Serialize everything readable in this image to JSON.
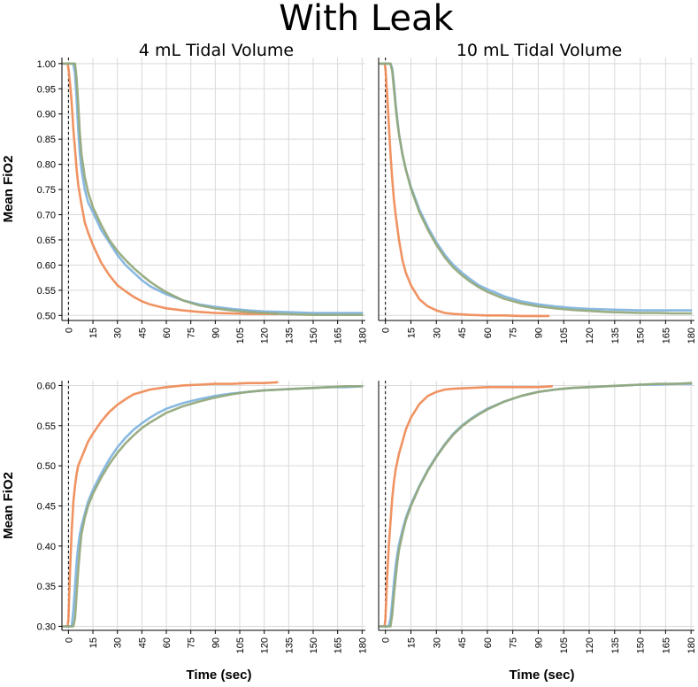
{
  "title": "With Leak",
  "colors": {
    "orange": "#ef8a55",
    "blue": "#7fb3de",
    "green": "#93a77a"
  },
  "chart_data": [
    {
      "type": "line",
      "panel": "top-left",
      "title": "4 mL Tidal Volume",
      "xlabel": "",
      "ylabel": "Mean FiO2",
      "xlim": [
        -4,
        182
      ],
      "ylim": [
        0.49,
        1.012
      ],
      "xticks": [
        0,
        15,
        30,
        45,
        60,
        75,
        90,
        105,
        120,
        135,
        150,
        165,
        180
      ],
      "yticks": [
        "0.50",
        "0.55",
        "0.60",
        "0.65",
        "0.70",
        "0.75",
        "0.80",
        "0.85",
        "0.90",
        "0.95",
        "1.00"
      ],
      "grid": true,
      "series": [
        {
          "color": "orange",
          "x": [
            -3,
            -0.5,
            0,
            1,
            2,
            3,
            4,
            5,
            6,
            8,
            10,
            12,
            15,
            20,
            25,
            30,
            35,
            40,
            45,
            50,
            55,
            60,
            70,
            80,
            90,
            100,
            110,
            120,
            128
          ],
          "y": [
            1.0,
            1.0,
            0.99,
            0.96,
            0.92,
            0.87,
            0.83,
            0.79,
            0.76,
            0.72,
            0.685,
            0.665,
            0.64,
            0.605,
            0.58,
            0.56,
            0.548,
            0.537,
            0.528,
            0.522,
            0.518,
            0.514,
            0.51,
            0.507,
            0.505,
            0.504,
            0.503,
            0.503,
            0.503
          ]
        },
        {
          "color": "blue",
          "x": [
            -3,
            3,
            4,
            5,
            6,
            7,
            8,
            10,
            12,
            15,
            20,
            25,
            30,
            35,
            40,
            45,
            50,
            55,
            60,
            70,
            80,
            90,
            100,
            110,
            120,
            130,
            140,
            150,
            160,
            170,
            180
          ],
          "y": [
            1.0,
            1.0,
            0.98,
            0.93,
            0.87,
            0.82,
            0.79,
            0.75,
            0.725,
            0.705,
            0.67,
            0.645,
            0.62,
            0.6,
            0.585,
            0.57,
            0.558,
            0.55,
            0.542,
            0.53,
            0.522,
            0.517,
            0.513,
            0.51,
            0.508,
            0.507,
            0.506,
            0.505,
            0.505,
            0.505,
            0.505
          ]
        },
        {
          "color": "green",
          "x": [
            -3,
            4,
            5,
            6,
            7,
            8,
            10,
            12,
            15,
            20,
            25,
            30,
            35,
            40,
            45,
            50,
            55,
            60,
            70,
            80,
            90,
            100,
            110,
            120,
            130,
            140,
            150,
            160,
            170,
            180
          ],
          "y": [
            1.0,
            1.0,
            0.97,
            0.92,
            0.86,
            0.82,
            0.775,
            0.745,
            0.715,
            0.68,
            0.65,
            0.628,
            0.61,
            0.594,
            0.58,
            0.567,
            0.556,
            0.546,
            0.53,
            0.52,
            0.514,
            0.51,
            0.507,
            0.505,
            0.503,
            0.502,
            0.501,
            0.501,
            0.501,
            0.501
          ]
        }
      ]
    },
    {
      "type": "line",
      "panel": "top-right",
      "title": "10 mL Tidal Volume",
      "xlabel": "",
      "ylabel": "",
      "xlim": [
        -4,
        182
      ],
      "ylim": [
        0.49,
        1.012
      ],
      "xticks": [
        0,
        15,
        30,
        45,
        60,
        75,
        90,
        105,
        120,
        135,
        150,
        165,
        180
      ],
      "grid": true,
      "series": [
        {
          "color": "orange",
          "x": [
            -3,
            -0.5,
            0,
            1,
            2,
            3,
            4,
            5,
            6,
            8,
            10,
            12,
            15,
            20,
            25,
            30,
            35,
            40,
            50,
            60,
            70,
            80,
            90,
            96
          ],
          "y": [
            1.0,
            1.0,
            0.99,
            0.94,
            0.88,
            0.82,
            0.77,
            0.73,
            0.7,
            0.65,
            0.61,
            0.585,
            0.56,
            0.532,
            0.518,
            0.51,
            0.505,
            0.503,
            0.501,
            0.5,
            0.5,
            0.499,
            0.499,
            0.499
          ]
        },
        {
          "color": "blue",
          "x": [
            -3,
            3,
            4,
            5,
            6,
            7,
            8,
            10,
            12,
            15,
            20,
            25,
            30,
            35,
            40,
            45,
            50,
            55,
            60,
            70,
            80,
            90,
            100,
            110,
            120,
            130,
            140,
            150,
            160,
            170,
            180
          ],
          "y": [
            1.0,
            1.0,
            0.99,
            0.96,
            0.92,
            0.89,
            0.86,
            0.82,
            0.79,
            0.755,
            0.71,
            0.675,
            0.645,
            0.62,
            0.6,
            0.585,
            0.572,
            0.56,
            0.552,
            0.538,
            0.528,
            0.522,
            0.518,
            0.515,
            0.513,
            0.512,
            0.511,
            0.51,
            0.51,
            0.51,
            0.51
          ]
        },
        {
          "color": "green",
          "x": [
            -3,
            3,
            4,
            5,
            6,
            7,
            8,
            10,
            12,
            15,
            20,
            25,
            30,
            35,
            40,
            45,
            50,
            55,
            60,
            70,
            80,
            90,
            100,
            110,
            120,
            130,
            140,
            150,
            160,
            170,
            180
          ],
          "y": [
            1.0,
            1.0,
            0.985,
            0.95,
            0.915,
            0.885,
            0.86,
            0.82,
            0.79,
            0.752,
            0.705,
            0.67,
            0.64,
            0.615,
            0.595,
            0.58,
            0.567,
            0.556,
            0.547,
            0.533,
            0.524,
            0.518,
            0.514,
            0.511,
            0.509,
            0.507,
            0.506,
            0.505,
            0.505,
            0.504,
            0.504
          ]
        }
      ]
    },
    {
      "type": "line",
      "panel": "bottom-left",
      "title": "",
      "xlabel": "Time (sec)",
      "ylabel": "Mean FiO2",
      "xlim": [
        -4,
        182
      ],
      "ylim": [
        0.295,
        0.606
      ],
      "xticks": [
        0,
        15,
        30,
        45,
        60,
        75,
        90,
        105,
        120,
        135,
        150,
        165,
        180
      ],
      "yticks": [
        "0.30",
        "0.35",
        "0.40",
        "0.45",
        "0.50",
        "0.55",
        "0.60"
      ],
      "grid": true,
      "series": [
        {
          "color": "orange",
          "x": [
            -3,
            -0.5,
            0,
            1,
            2,
            3,
            4,
            5,
            6,
            8,
            10,
            12,
            15,
            20,
            25,
            30,
            35,
            40,
            45,
            50,
            60,
            70,
            80,
            90,
            100,
            110,
            120,
            128
          ],
          "y": [
            0.3,
            0.3,
            0.31,
            0.37,
            0.42,
            0.455,
            0.475,
            0.49,
            0.5,
            0.51,
            0.52,
            0.53,
            0.54,
            0.555,
            0.567,
            0.576,
            0.583,
            0.589,
            0.592,
            0.595,
            0.598,
            0.6,
            0.601,
            0.602,
            0.602,
            0.603,
            0.603,
            0.604
          ]
        },
        {
          "color": "blue",
          "x": [
            -3,
            2,
            3,
            4,
            5,
            6,
            7,
            8,
            10,
            12,
            15,
            20,
            25,
            30,
            35,
            40,
            45,
            50,
            55,
            60,
            70,
            80,
            90,
            100,
            110,
            120,
            130,
            140,
            150,
            160,
            170,
            180
          ],
          "y": [
            0.3,
            0.3,
            0.32,
            0.35,
            0.38,
            0.4,
            0.415,
            0.425,
            0.44,
            0.455,
            0.47,
            0.49,
            0.508,
            0.523,
            0.535,
            0.545,
            0.553,
            0.56,
            0.566,
            0.571,
            0.578,
            0.583,
            0.587,
            0.59,
            0.592,
            0.594,
            0.595,
            0.596,
            0.597,
            0.598,
            0.598,
            0.599
          ]
        },
        {
          "color": "green",
          "x": [
            -3,
            3,
            4,
            5,
            6,
            7,
            8,
            10,
            12,
            15,
            20,
            25,
            30,
            35,
            40,
            45,
            50,
            55,
            60,
            70,
            80,
            90,
            100,
            110,
            120,
            130,
            140,
            150,
            160,
            170,
            180
          ],
          "y": [
            0.3,
            0.3,
            0.31,
            0.34,
            0.37,
            0.395,
            0.415,
            0.435,
            0.45,
            0.465,
            0.485,
            0.502,
            0.516,
            0.528,
            0.538,
            0.547,
            0.554,
            0.56,
            0.566,
            0.574,
            0.58,
            0.585,
            0.589,
            0.592,
            0.594,
            0.595,
            0.596,
            0.597,
            0.598,
            0.599,
            0.599
          ]
        }
      ]
    },
    {
      "type": "line",
      "panel": "bottom-right",
      "title": "",
      "xlabel": "Time (sec)",
      "ylabel": "",
      "xlim": [
        -4,
        182
      ],
      "ylim": [
        0.295,
        0.606
      ],
      "xticks": [
        0,
        15,
        30,
        45,
        60,
        75,
        90,
        105,
        120,
        135,
        150,
        165,
        180
      ],
      "grid": true,
      "series": [
        {
          "color": "orange",
          "x": [
            -3,
            -0.5,
            0,
            1,
            2,
            3,
            4,
            5,
            6,
            8,
            10,
            12,
            15,
            18,
            20,
            25,
            30,
            35,
            40,
            50,
            60,
            70,
            80,
            90,
            98
          ],
          "y": [
            0.3,
            0.3,
            0.31,
            0.36,
            0.4,
            0.43,
            0.46,
            0.48,
            0.495,
            0.515,
            0.53,
            0.545,
            0.56,
            0.57,
            0.577,
            0.587,
            0.592,
            0.595,
            0.596,
            0.597,
            0.598,
            0.598,
            0.598,
            0.598,
            0.599
          ]
        },
        {
          "color": "blue",
          "x": [
            -3,
            2,
            3,
            4,
            5,
            6,
            7,
            8,
            10,
            12,
            15,
            20,
            25,
            30,
            35,
            40,
            45,
            50,
            55,
            60,
            70,
            80,
            90,
            100,
            110,
            120,
            130,
            140,
            150,
            160,
            170,
            180
          ],
          "y": [
            0.3,
            0.3,
            0.31,
            0.33,
            0.355,
            0.375,
            0.39,
            0.402,
            0.42,
            0.435,
            0.452,
            0.475,
            0.495,
            0.512,
            0.527,
            0.54,
            0.55,
            0.558,
            0.565,
            0.571,
            0.58,
            0.587,
            0.592,
            0.595,
            0.597,
            0.598,
            0.599,
            0.6,
            0.601,
            0.601,
            0.602,
            0.602
          ]
        },
        {
          "color": "green",
          "x": [
            -3,
            3,
            4,
            5,
            6,
            7,
            8,
            10,
            12,
            15,
            20,
            25,
            30,
            35,
            40,
            45,
            50,
            55,
            60,
            70,
            80,
            90,
            100,
            110,
            120,
            130,
            140,
            150,
            160,
            170,
            180
          ],
          "y": [
            0.3,
            0.3,
            0.315,
            0.34,
            0.36,
            0.38,
            0.395,
            0.415,
            0.432,
            0.45,
            0.474,
            0.494,
            0.511,
            0.526,
            0.539,
            0.549,
            0.557,
            0.564,
            0.57,
            0.58,
            0.587,
            0.592,
            0.595,
            0.597,
            0.598,
            0.599,
            0.6,
            0.601,
            0.602,
            0.602,
            0.603
          ]
        }
      ]
    }
  ]
}
